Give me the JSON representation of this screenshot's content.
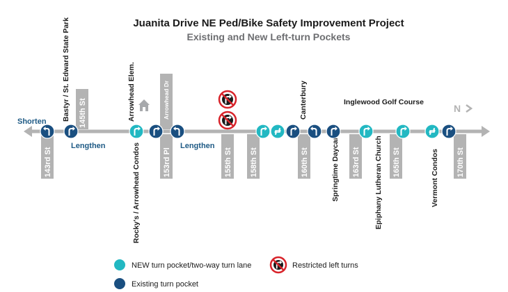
{
  "title": "Juanita Drive NE Ped/Bike Safety Improvement Project",
  "subtitle": "Existing and New Left-turn Pockets",
  "north_label": "N",
  "annotations": {
    "shorten": "Shorten",
    "lengthen_1": "Lengthen",
    "lengthen_2": "Lengthen"
  },
  "streets": {
    "s143": "143rd St",
    "s145": "145th St",
    "s153": "153rd Pl",
    "arrowhead_dr": "Arrowhead Dr",
    "s155": "155th St",
    "s158": "158th St",
    "s160": "160th St",
    "s163": "163rd St",
    "s165": "165th St",
    "s170": "170th St"
  },
  "places": {
    "bastyr": "Bastyr / St. Edward State Park",
    "arrowhead_elem": "Arrowhead Elem.",
    "rockys": "Rocky's / Arrowhead Condos",
    "canterbury": "Canterbury",
    "inglewood": "Inglewood Golf Course",
    "springtime": "Springtime Daycare",
    "epiphany": "Epiphany Lutheran Church",
    "vermont": "Vermont Condos"
  },
  "legend": {
    "new": "NEW turn pocket/two-way turn lane",
    "existing": "Existing turn pocket",
    "restricted": "Restricted left turns"
  },
  "colors": {
    "road": "#b3b3b3",
    "existing": "#1a4f80",
    "new": "#22b8c2",
    "restricted": "#d8232a",
    "blue_text": "#1e5a85"
  }
}
